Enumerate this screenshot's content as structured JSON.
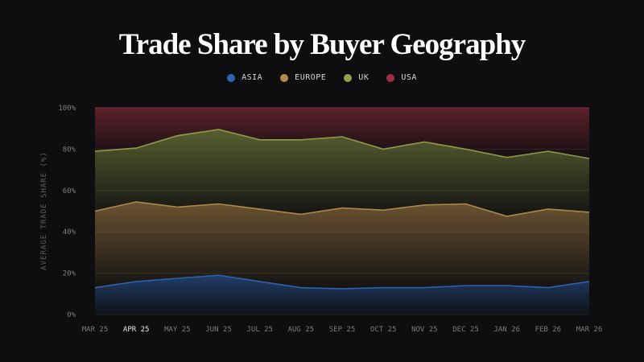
{
  "chart_data": {
    "type": "area",
    "title": "Trade Share by Buyer Geography",
    "xlabel": "",
    "ylabel": "AVERAGE TRADE SHARE (%)",
    "stacked": true,
    "ylim": [
      0,
      100
    ],
    "yticks": [
      "0%",
      "20%",
      "40%",
      "60%",
      "80%",
      "100%"
    ],
    "ytick_values": [
      0,
      20,
      40,
      60,
      80,
      100
    ],
    "categories": [
      "MAR 25",
      "APR 25",
      "MAY 25",
      "JUN 25",
      "JUL 25",
      "AUG 25",
      "SEP 25",
      "OCT 25",
      "NOV 25",
      "DEC 25",
      "JAN 26",
      "FEB 26",
      "MAR 26"
    ],
    "highlight_category": "APR 25",
    "legend_position": "top-center",
    "grid": true,
    "series": [
      {
        "name": "ASIA",
        "color": "#2f64b3",
        "values": [
          13,
          16,
          17.5,
          19,
          16,
          13,
          12.5,
          13,
          13,
          14,
          14,
          13,
          16
        ]
      },
      {
        "name": "EUROPE",
        "color": "#b58a4c",
        "values": [
          37,
          38.5,
          34.5,
          34.5,
          35,
          35.5,
          39,
          37.5,
          40,
          39.5,
          33.5,
          38,
          33.5
        ]
      },
      {
        "name": "UK",
        "color": "#93a04a",
        "values": [
          29,
          26,
          34.5,
          36,
          33.5,
          36,
          34.5,
          29.5,
          30.5,
          26.5,
          28.5,
          28,
          26
        ]
      },
      {
        "name": "USA",
        "color": "#9c3040",
        "values": [
          21,
          19.5,
          13.5,
          10.5,
          15.5,
          15.5,
          14,
          20,
          16.5,
          20,
          24,
          21,
          24.5
        ]
      }
    ]
  }
}
